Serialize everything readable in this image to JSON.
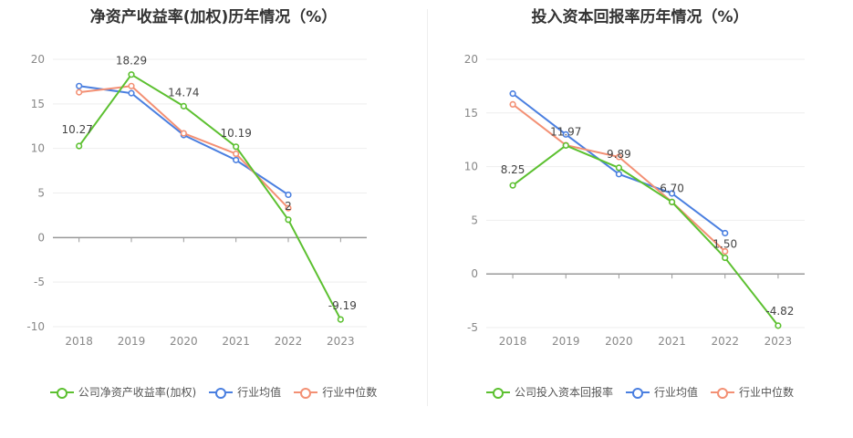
{
  "chart_data": [
    {
      "type": "line",
      "title": "净资产收益率(加权)历年情况（%）",
      "categories": [
        "2018",
        "2019",
        "2020",
        "2021",
        "2022",
        "2023"
      ],
      "ylim": [
        -10,
        20
      ],
      "yticks": [
        20,
        15,
        10,
        5,
        0,
        -5,
        -10
      ],
      "legend_position": "bottom",
      "series": [
        {
          "name": "公司净资产收益率(加权)",
          "color": "#5cc030",
          "values": [
            10.27,
            18.29,
            14.74,
            10.19,
            2,
            -9.19
          ],
          "labels": [
            "10.27",
            "18.29",
            "14.74",
            "10.19",
            "2",
            "-9.19"
          ]
        },
        {
          "name": "行业均值",
          "color": "#4a7fe0",
          "values": [
            17.0,
            16.2,
            11.5,
            8.7,
            4.8,
            null
          ]
        },
        {
          "name": "行业中位数",
          "color": "#f39074",
          "values": [
            16.3,
            17.0,
            11.7,
            9.4,
            3.3,
            null
          ]
        }
      ]
    },
    {
      "type": "line",
      "title": "投入资本回报率历年情况（%）",
      "categories": [
        "2018",
        "2019",
        "2020",
        "2021",
        "2022",
        "2023"
      ],
      "ylim": [
        -5,
        20
      ],
      "yticks": [
        20,
        15,
        10,
        5,
        0,
        -5
      ],
      "legend_position": "bottom",
      "series": [
        {
          "name": "公司投入资本回报率",
          "color": "#5cc030",
          "values": [
            8.25,
            11.97,
            9.89,
            6.7,
            1.5,
            -4.82
          ],
          "labels": [
            "8.25",
            "11.97",
            "9.89",
            "6.70",
            "1.50",
            "-4.82"
          ]
        },
        {
          "name": "行业均值",
          "color": "#4a7fe0",
          "values": [
            16.8,
            13.0,
            9.3,
            7.5,
            3.8,
            null
          ]
        },
        {
          "name": "行业中位数",
          "color": "#f39074",
          "values": [
            15.8,
            12.0,
            10.9,
            6.7,
            2.1,
            null
          ]
        }
      ]
    }
  ]
}
